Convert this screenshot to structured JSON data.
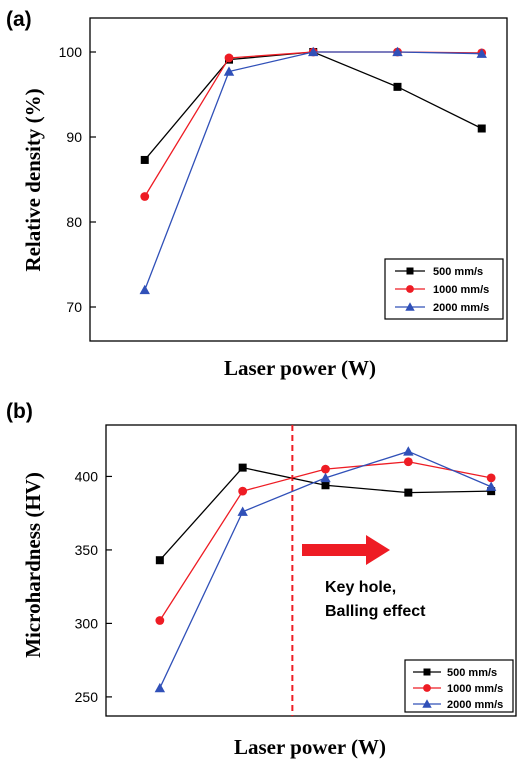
{
  "chart_data": [
    {
      "type": "line",
      "panel_label": "(a)",
      "xlabel": "Laser power (W)",
      "ylabel": "Relative density (%)",
      "x": [
        1,
        2,
        3,
        4,
        5
      ],
      "xlim": [
        0.35,
        5.3
      ],
      "ylim": [
        66,
        104
      ],
      "yticks": [
        70,
        80,
        90,
        100
      ],
      "x_tick_labels": [],
      "grid": false,
      "legend_position": "bottom-right",
      "series": [
        {
          "name": "500 mm/s",
          "color": "#000000",
          "marker": "square",
          "values": [
            87.3,
            99.1,
            100.0,
            95.9,
            91.0
          ]
        },
        {
          "name": "1000 mm/s",
          "color": "#ee1c24",
          "marker": "circle",
          "values": [
            83.0,
            99.3,
            100.0,
            100.0,
            99.9
          ]
        },
        {
          "name": "2000 mm/s",
          "color": "#3050b8",
          "marker": "triangle",
          "values": [
            72.0,
            97.7,
            100.0,
            100.0,
            99.8
          ]
        }
      ]
    },
    {
      "type": "line",
      "panel_label": "(b)",
      "xlabel": "Laser power (W)",
      "ylabel": "Microhardness (HV)",
      "x": [
        1,
        2,
        3,
        4,
        5
      ],
      "xlim": [
        0.35,
        5.3
      ],
      "ylim": [
        237,
        435
      ],
      "yticks": [
        250,
        300,
        350,
        400
      ],
      "x_tick_labels": [],
      "grid": false,
      "legend_position": "bottom-right",
      "threshold_line": {
        "x": 2.6,
        "style": "dashed",
        "color": "#ee1c24"
      },
      "arrow": {
        "color": "#ee1c24",
        "direction": "right"
      },
      "annotation_lines": [
        "Key hole,",
        "Balling effect"
      ],
      "series": [
        {
          "name": "500 mm/s",
          "color": "#000000",
          "marker": "square",
          "values": [
            343,
            406,
            394,
            389,
            390
          ]
        },
        {
          "name": "1000 mm/s",
          "color": "#ee1c24",
          "marker": "circle",
          "values": [
            302,
            390,
            405,
            410,
            399
          ]
        },
        {
          "name": "2000 mm/s",
          "color": "#3050b8",
          "marker": "triangle",
          "values": [
            256,
            376,
            399,
            417,
            393
          ]
        }
      ]
    }
  ]
}
